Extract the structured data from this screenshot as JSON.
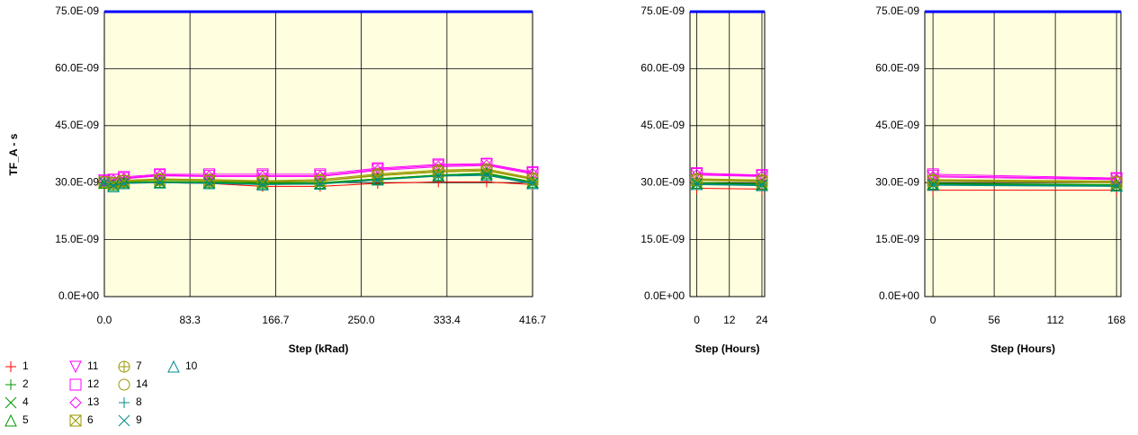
{
  "chart_data": [
    {
      "type": "line",
      "ylabel": "TF_A - s",
      "xlabel": "Step (kRad)",
      "x": [
        0,
        8.8,
        19,
        54,
        102,
        154,
        210,
        266,
        325,
        372,
        416.7
      ],
      "xlim": [
        0,
        416.7
      ],
      "xticks": [
        {
          "value": 0,
          "label": "0.0"
        },
        83.3,
        166.7,
        {
          "value": 250.0,
          "label": "250.0"
        },
        333.4,
        416.7
      ],
      "ylim": [
        0,
        7.5e-08
      ],
      "yticks": [
        {
          "value": 0,
          "label": "0.0E+00"
        },
        {
          "value": 1.5e-08,
          "label": "15.0E-09"
        },
        {
          "value": 3e-08,
          "label": "30.0E-09"
        },
        {
          "value": 4.5e-08,
          "label": "45.0E-09"
        },
        {
          "value": 6e-08,
          "label": "60.0E-09"
        },
        {
          "value": 7.5e-08,
          "label": "75.0E-09"
        }
      ],
      "grid": true,
      "limit": 7.5e-08,
      "limit_color": "#0000ff",
      "background": "#ffffe0",
      "series": [
        {
          "name": "1",
          "color": "#ff0000",
          "marker": "plus",
          "values": [
            3e-08,
            2.95e-08,
            3e-08,
            3e-08,
            2.98e-08,
            2.9e-08,
            2.9e-08,
            2.98e-08,
            3.02e-08,
            3.02e-08,
            2.95e-08
          ]
        },
        {
          "name": "11",
          "color": "#ff00ff",
          "marker": "tri-down",
          "values": [
            3.05e-08,
            3.08e-08,
            3.12e-08,
            3.2e-08,
            3.18e-08,
            3.18e-08,
            3.18e-08,
            3.35e-08,
            3.45e-08,
            3.48e-08,
            3.25e-08
          ]
        },
        {
          "name": "7",
          "color": "#999900",
          "marker": "circle-plus",
          "values": [
            3.02e-08,
            2.98e-08,
            3.05e-08,
            3.08e-08,
            3.06e-08,
            3.03e-08,
            3.05e-08,
            3.2e-08,
            3.3e-08,
            3.33e-08,
            3.1e-08
          ]
        },
        {
          "name": "10",
          "color": "#008b8b",
          "marker": "tri-up",
          "values": [
            3e-08,
            2.9e-08,
            2.98e-08,
            3e-08,
            2.98e-08,
            2.95e-08,
            2.97e-08,
            3.08e-08,
            3.18e-08,
            3.2e-08,
            2.98e-08
          ]
        },
        {
          "name": "2",
          "color": "#009900",
          "marker": "plus",
          "values": [
            3e-08,
            2.95e-08,
            3.02e-08,
            3.03e-08,
            3.02e-08,
            3e-08,
            3e-08,
            3.1e-08,
            3.2e-08,
            3.25e-08,
            3.02e-08
          ]
        },
        {
          "name": "12",
          "color": "#ff00ff",
          "marker": "square",
          "values": [
            3.06e-08,
            3.08e-08,
            3.15e-08,
            3.22e-08,
            3.22e-08,
            3.22e-08,
            3.22e-08,
            3.38e-08,
            3.48e-08,
            3.5e-08,
            3.28e-08
          ]
        },
        {
          "name": "14",
          "color": "#999900",
          "marker": "circle",
          "values": [
            3.03e-08,
            3e-08,
            3.06e-08,
            3.1e-08,
            3.08e-08,
            3.05e-08,
            3.08e-08,
            3.23e-08,
            3.33e-08,
            3.36e-08,
            3.12e-08
          ]
        },
        {
          "name": "4",
          "color": "#009900",
          "marker": "x",
          "values": [
            2.98e-08,
            2.94e-08,
            3e-08,
            3.02e-08,
            3e-08,
            2.97e-08,
            2.98e-08,
            3.08e-08,
            3.18e-08,
            3.22e-08,
            3e-08
          ]
        },
        {
          "name": "13",
          "color": "#ff00ff",
          "marker": "diamond",
          "values": [
            3.04e-08,
            3.06e-08,
            3.1e-08,
            3.18e-08,
            3.16e-08,
            3.16e-08,
            3.16e-08,
            3.32e-08,
            3.42e-08,
            3.45e-08,
            3.23e-08
          ]
        },
        {
          "name": "8",
          "color": "#008b8b",
          "marker": "plus",
          "values": [
            2.99e-08,
            2.93e-08,
            2.99e-08,
            3.01e-08,
            2.99e-08,
            2.96e-08,
            2.98e-08,
            3.09e-08,
            3.19e-08,
            3.21e-08,
            2.99e-08
          ]
        },
        {
          "name": "5",
          "color": "#009900",
          "marker": "tri-up",
          "values": [
            2.99e-08,
            2.94e-08,
            3.01e-08,
            3.02e-08,
            3.01e-08,
            2.98e-08,
            2.99e-08,
            3.1e-08,
            3.2e-08,
            3.24e-08,
            3.01e-08
          ]
        },
        {
          "name": "6",
          "color": "#999900",
          "marker": "boxed-x",
          "values": [
            3.01e-08,
            2.98e-08,
            3.04e-08,
            3.07e-08,
            3.05e-08,
            3.02e-08,
            3.04e-08,
            3.18e-08,
            3.28e-08,
            3.31e-08,
            3.08e-08
          ]
        },
        {
          "name": "9",
          "color": "#008b8b",
          "marker": "x",
          "values": [
            3e-08,
            2.92e-08,
            2.98e-08,
            3e-08,
            2.98e-08,
            2.95e-08,
            2.96e-08,
            3.07e-08,
            3.17e-08,
            3.19e-08,
            2.97e-08
          ]
        }
      ]
    },
    {
      "type": "line",
      "xlabel": "Step (Hours)",
      "x": [
        0,
        24
      ],
      "xlim": [
        -2.5,
        25
      ],
      "xticks": [
        0,
        12,
        24
      ],
      "ylim": [
        0,
        7.5e-08
      ],
      "yticks": [
        {
          "value": 0,
          "label": "0.0E+00"
        },
        {
          "value": 1.5e-08,
          "label": "15.0E-09"
        },
        {
          "value": 3e-08,
          "label": "30.0E-09"
        },
        {
          "value": 4.5e-08,
          "label": "45.0E-09"
        },
        {
          "value": 6e-08,
          "label": "60.0E-09"
        },
        {
          "value": 7.5e-08,
          "label": "75.0E-09"
        }
      ],
      "grid": true,
      "limit": 7.5e-08,
      "limit_color": "#0000ff",
      "background": "#ffffe0",
      "series": [
        {
          "values": [
            2.85e-08,
            2.83e-08
          ]
        },
        {
          "values": [
            3.23e-08,
            3.18e-08
          ]
        },
        {
          "values": [
            3.08e-08,
            3.05e-08
          ]
        },
        {
          "values": [
            2.96e-08,
            2.93e-08
          ]
        },
        {
          "values": [
            3e-08,
            2.97e-08
          ]
        },
        {
          "values": [
            3.25e-08,
            3.2e-08
          ]
        },
        {
          "values": [
            3.1e-08,
            3.07e-08
          ]
        },
        {
          "values": [
            2.98e-08,
            2.95e-08
          ]
        },
        {
          "values": [
            3.2e-08,
            3.16e-08
          ]
        },
        {
          "values": [
            2.97e-08,
            2.94e-08
          ]
        },
        {
          "values": [
            2.99e-08,
            2.96e-08
          ]
        },
        {
          "values": [
            3.06e-08,
            3.03e-08
          ]
        },
        {
          "values": [
            2.95e-08,
            2.92e-08
          ]
        }
      ]
    },
    {
      "type": "line",
      "xlabel": "Step (Hours)",
      "x": [
        0,
        168
      ],
      "xlim": [
        -7.5,
        172
      ],
      "xticks": [
        0,
        56,
        112,
        168
      ],
      "ylim": [
        0,
        7.5e-08
      ],
      "yticks": [
        {
          "value": 0,
          "label": "0.0E+00"
        },
        {
          "value": 1.5e-08,
          "label": "15.0E-09"
        },
        {
          "value": 3e-08,
          "label": "30.0E-09"
        },
        {
          "value": 4.5e-08,
          "label": "45.0E-09"
        },
        {
          "value": 6e-08,
          "label": "60.0E-09"
        },
        {
          "value": 7.5e-08,
          "label": "75.0E-09"
        }
      ],
      "grid": true,
      "limit": 7.5e-08,
      "limit_color": "#0000ff",
      "background": "#ffffe0",
      "series": [
        {
          "values": [
            2.8e-08,
            2.8e-08
          ]
        },
        {
          "values": [
            3.18e-08,
            3.1e-08
          ]
        },
        {
          "values": [
            3.06e-08,
            3.02e-08
          ]
        },
        {
          "values": [
            2.94e-08,
            2.92e-08
          ]
        },
        {
          "values": [
            2.98e-08,
            2.95e-08
          ]
        },
        {
          "values": [
            3.22e-08,
            3.12e-08
          ]
        },
        {
          "values": [
            3.08e-08,
            3.04e-08
          ]
        },
        {
          "values": [
            2.96e-08,
            2.93e-08
          ]
        },
        {
          "values": [
            3.15e-08,
            3.08e-08
          ]
        },
        {
          "values": [
            2.95e-08,
            2.92e-08
          ]
        },
        {
          "values": [
            2.97e-08,
            2.94e-08
          ]
        },
        {
          "values": [
            3.04e-08,
            3e-08
          ]
        },
        {
          "values": [
            2.93e-08,
            2.9e-08
          ]
        }
      ]
    }
  ]
}
